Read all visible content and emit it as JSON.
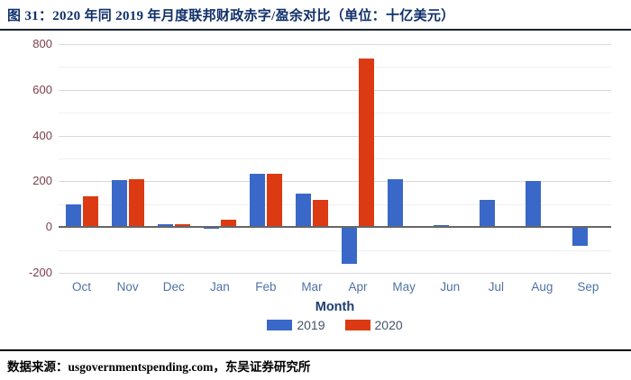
{
  "figure": {
    "title": "图 31：2020 年同 2019 年月度联邦财政赤字/盈余对比（单位：十亿美元）",
    "source": "数据来源：usgovernmentspending.com，东吴证券研究所"
  },
  "chart_data": {
    "type": "bar",
    "title": "2020 年同 2019 年月度联邦财政赤字/盈余对比",
    "unit": "十亿美元",
    "categories": [
      "Oct",
      "Nov",
      "Dec",
      "Jan",
      "Feb",
      "Mar",
      "Apr",
      "May",
      "Jun",
      "Jul",
      "Aug",
      "Sep"
    ],
    "series": [
      {
        "name": "2019",
        "color": "#3a68c8",
        "values": [
          101,
          205,
          14,
          -9,
          234,
          147,
          -160,
          208,
          8,
          120,
          200,
          -83
        ]
      },
      {
        "name": "2020",
        "color": "#dc3a13",
        "values": [
          134,
          209,
          13,
          33,
          235,
          119,
          738,
          0,
          0,
          0,
          0,
          0
        ]
      }
    ],
    "xlabel": "Month",
    "ylabel": "",
    "ylim": [
      -200,
      800
    ],
    "yticks": [
      800,
      600,
      400,
      200,
      0,
      -200
    ],
    "minor_yticks": [
      700,
      500,
      300,
      100,
      -100
    ],
    "grid": true,
    "legend_position": "bottom"
  },
  "colors": {
    "title": "#102f6a",
    "title_rule": "#1c2430",
    "tick_labels": "#7d3e4e",
    "month_labels": "#4f72a4",
    "axis_title": "#1c3c6e",
    "legend_text": "#44546a",
    "grid_major": "#d9d9d9",
    "grid_minor": "#f0f0f0",
    "zero_line": "#666666",
    "source_rule": "#000000"
  }
}
